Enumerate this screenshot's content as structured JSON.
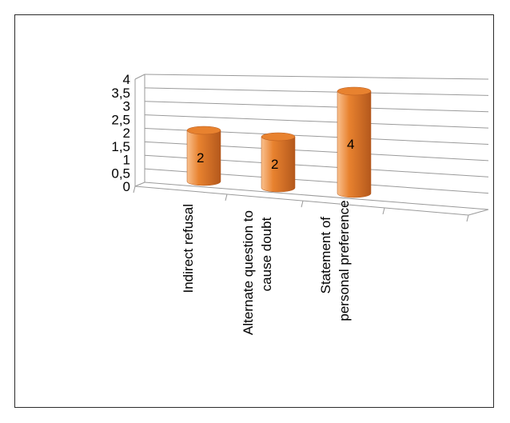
{
  "chart_data": {
    "type": "bar",
    "style": "3d-cylinder",
    "categories": [
      [
        "Indirect refusal"
      ],
      [
        "Alternate question to",
        "cause doubt"
      ],
      [
        "Statement of",
        "personal preference"
      ]
    ],
    "values": [
      2,
      2,
      4
    ],
    "data_labels": [
      "2",
      "2",
      "4"
    ],
    "y_ticks": [
      "0",
      "0,5",
      "1",
      "1,5",
      "2",
      "2,5",
      "3",
      "3,5",
      "4"
    ],
    "ylim": [
      0,
      4
    ],
    "grid": true,
    "legend": "none",
    "title": "",
    "xlabel": "",
    "ylabel": ""
  },
  "colors": {
    "bar_light": "#f9c08e",
    "bar_mid": "#e8822f",
    "bar_dark": "#b4581c",
    "grid": "#9a9a9a",
    "text": "#000000"
  }
}
